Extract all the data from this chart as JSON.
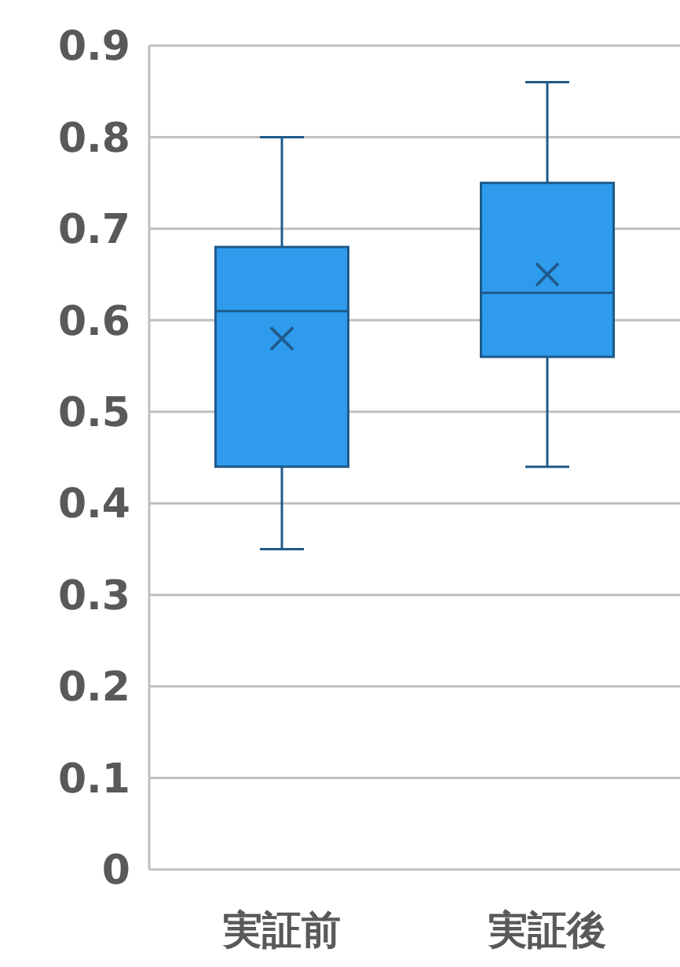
{
  "chart_data": {
    "type": "box",
    "categories": [
      "実証前",
      "実証後"
    ],
    "boxes": [
      {
        "low": 0.35,
        "q1": 0.44,
        "median": 0.61,
        "q3": 0.68,
        "high": 0.8,
        "mean": 0.58
      },
      {
        "low": 0.44,
        "q1": 0.56,
        "median": 0.63,
        "q3": 0.75,
        "high": 0.86,
        "mean": 0.65
      }
    ],
    "color": "#2e9bec",
    "ylim": [
      0,
      0.9
    ],
    "yticks": [
      0,
      0.1,
      0.2,
      0.3,
      0.4,
      0.5,
      0.6,
      0.7,
      0.8,
      0.9
    ],
    "grid": "y"
  }
}
